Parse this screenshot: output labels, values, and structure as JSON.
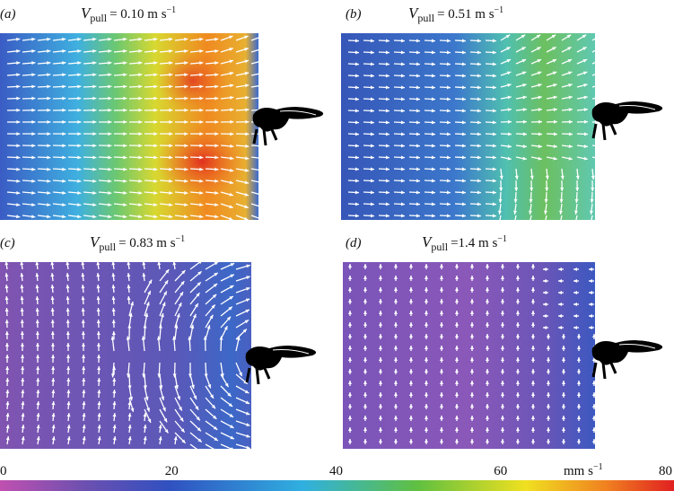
{
  "panels": [
    {
      "label": "(a)",
      "symbol": "V",
      "subscript": "pull",
      "value": "= 0.10 m s",
      "exponent": "−1"
    },
    {
      "label": "(b)",
      "symbol": "V",
      "subscript": "pull",
      "value": "= 0.51 m s",
      "exponent": "−1"
    },
    {
      "label": "(c)",
      "symbol": "V",
      "subscript": "pull",
      "value": "= 0.83 m s",
      "exponent": "−1"
    },
    {
      "label": "(d)",
      "symbol": "V",
      "subscript": "pull",
      "value": "=1.4 m s",
      "exponent": "−1"
    }
  ],
  "colorbar": {
    "ticks": [
      "0",
      "20",
      "40",
      "60",
      "80"
    ],
    "unit": "mm s",
    "unit_exponent": "−1"
  }
}
